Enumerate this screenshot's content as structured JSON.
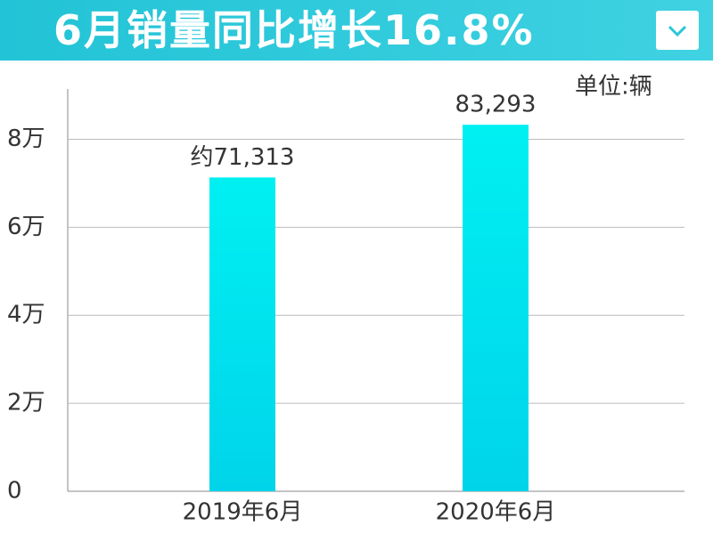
{
  "chart_data": {
    "type": "bar",
    "title": "6月销量同比增长16.8%",
    "unit_note": "单位:辆",
    "categories": [
      "2019年6月",
      "2020年6月"
    ],
    "values": [
      71313,
      83293
    ],
    "value_labels": [
      "约71,313",
      "83,293"
    ],
    "color": "#00d4ea",
    "ylim": [
      0,
      90000
    ],
    "yticks": [
      0,
      {
        "value": 20000,
        "label": "2万"
      },
      {
        "value": 40000,
        "label": "4万"
      },
      {
        "value": 60000,
        "label": "6万"
      },
      {
        "value": 80000,
        "label": "8万"
      }
    ],
    "grid": true
  }
}
